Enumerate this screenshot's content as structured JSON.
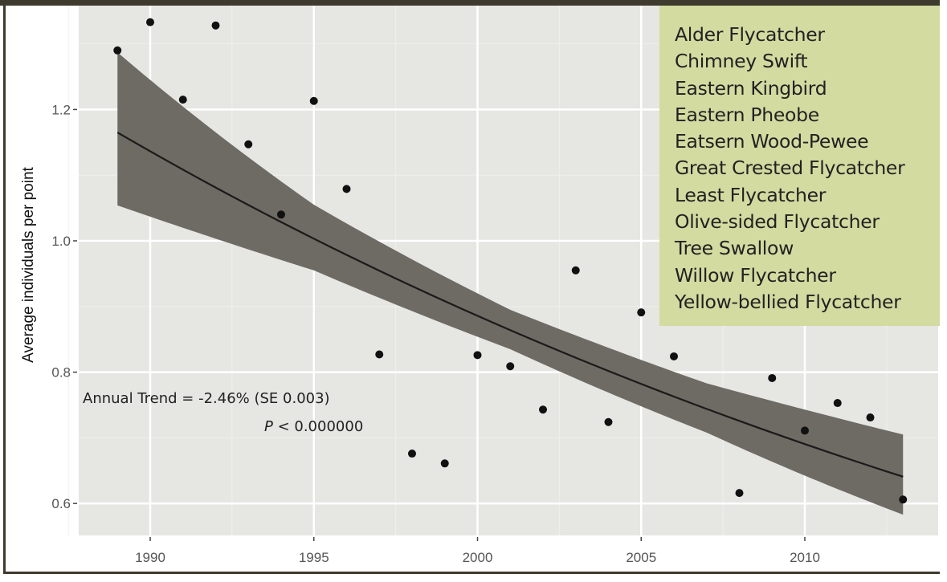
{
  "chart_data": {
    "type": "scatter",
    "xlabel": "",
    "ylabel": "Average individuals per point",
    "xlim": [
      1987.8,
      2014.1
    ],
    "ylim": [
      0.55,
      1.37
    ],
    "x_ticks": [
      1990,
      1995,
      2000,
      2005,
      2010
    ],
    "x_tick_labels": [
      "1990",
      "1995",
      "2000",
      "2005",
      "2010"
    ],
    "y_ticks": [
      0.6,
      0.8,
      1.0,
      1.2
    ],
    "y_tick_labels": [
      "0.6",
      "0.8",
      "1.0",
      "1.2"
    ],
    "grid": true,
    "points": {
      "x": [
        1989,
        1990,
        1991,
        1992,
        1993,
        1994,
        1995,
        1996,
        1997,
        1998,
        1999,
        2000,
        2001,
        2002,
        2003,
        2004,
        2005,
        2006,
        2008,
        2009,
        2010,
        2011,
        2012,
        2013
      ],
      "y": [
        1.29,
        1.333,
        1.215,
        1.328,
        1.147,
        1.04,
        1.213,
        1.079,
        0.827,
        0.676,
        0.661,
        0.826,
        0.809,
        0.743,
        0.955,
        0.724,
        0.891,
        0.824,
        0.616,
        0.791,
        0.711,
        0.753,
        0.731,
        0.606
      ]
    },
    "trend": {
      "x_start": 1989,
      "x_end": 2013,
      "y_start": 1.165,
      "annual_rate": -0.0246
    },
    "confidence_band": {
      "x": [
        1989,
        1995,
        2001,
        2007,
        2013
      ],
      "upper": [
        1.287,
        1.055,
        0.895,
        0.783,
        0.705
      ],
      "lower": [
        1.054,
        0.955,
        0.835,
        0.708,
        0.583
      ]
    },
    "annotation": {
      "line1": "Annual Trend = -2.46% (SE 0.003)",
      "p_symbol": "P",
      "p_rest": " < 0.000000"
    },
    "legend_placement": "top-right",
    "legend_title": "",
    "species": [
      "Alder Flycatcher",
      "Chimney Swift",
      "Eastern Kingbird",
      "Eastern Pheobe",
      "Eatsern Wood-Pewee",
      "Great Crested Flycatcher",
      "Least Flycatcher",
      "Olive-sided Flycatcher",
      "Tree Swallow",
      "Willow Flycatcher",
      "Yellow-bellied Flycatcher"
    ],
    "colors": {
      "panel": "#e6e6e3",
      "grid": "#ffffff",
      "band": "#6e6a64",
      "points": "#111111",
      "legend_bg": "#d3dba0",
      "frame": "#3f3a2e"
    }
  }
}
